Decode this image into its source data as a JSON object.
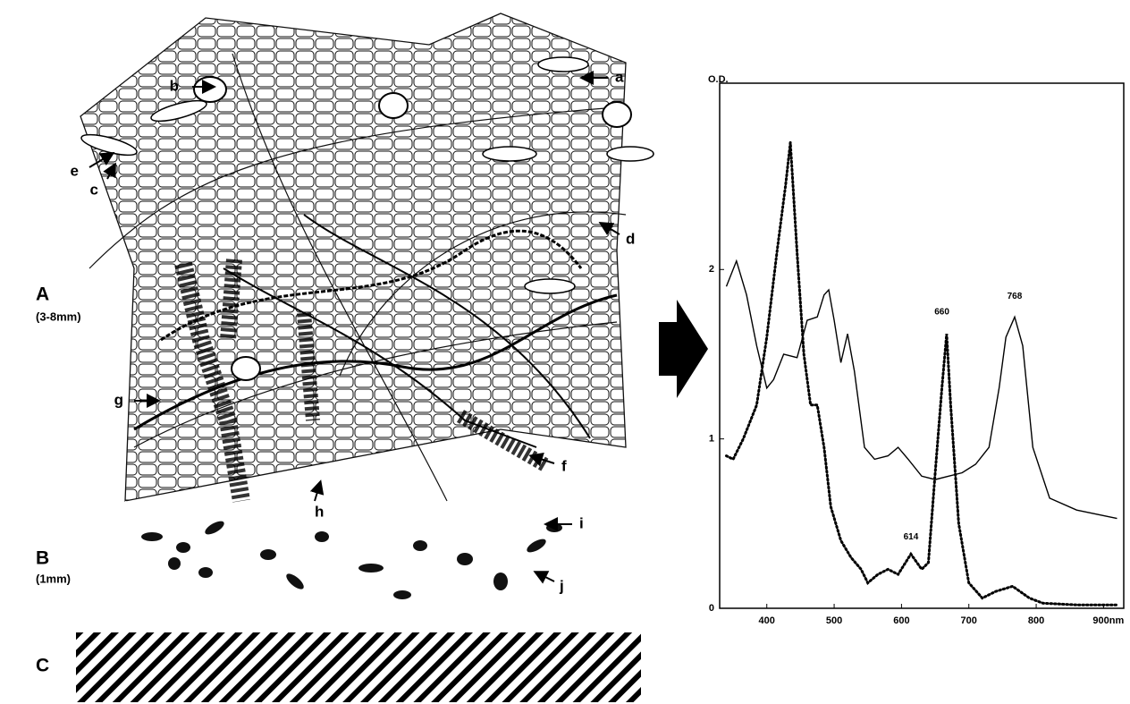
{
  "illustration": {
    "layers": [
      {
        "label": "A",
        "depth": "(3-8mm)"
      },
      {
        "label": "B",
        "depth": "(1mm)"
      },
      {
        "label": "C"
      }
    ],
    "organisms": [
      "a",
      "b",
      "c",
      "d",
      "e",
      "f",
      "g",
      "h",
      "i",
      "j"
    ]
  },
  "chart_data": {
    "type": "line",
    "y_label": "O.D.",
    "xlim": [
      330,
      930
    ],
    "ylim": [
      0,
      3.1
    ],
    "xticks": [
      400,
      500,
      600,
      700,
      800,
      {
        "value": 900,
        "label": "900nm"
      }
    ],
    "yticks": [
      0,
      1,
      2
    ],
    "series": [
      {
        "color": "#000000",
        "line_style": "solid",
        "x": [
          340,
          355,
          370,
          385,
          400,
          410,
          425,
          445,
          460,
          475,
          485,
          492,
          500,
          510,
          520,
          530,
          545,
          560,
          580,
          595,
          610,
          630,
          650,
          670,
          690,
          710,
          730,
          745,
          755,
          768,
          780,
          795,
          820,
          860,
          920
        ],
        "values": [
          1.9,
          2.05,
          1.85,
          1.55,
          1.3,
          1.35,
          1.5,
          1.48,
          1.7,
          1.72,
          1.85,
          1.88,
          1.7,
          1.45,
          1.62,
          1.4,
          0.95,
          0.88,
          0.9,
          0.95,
          0.88,
          0.78,
          0.76,
          0.78,
          0.8,
          0.85,
          0.95,
          1.3,
          1.6,
          1.72,
          1.55,
          0.95,
          0.65,
          0.58,
          0.53
        ]
      },
      {
        "color": "#000000",
        "line_style": "dotted",
        "x": [
          340,
          350,
          365,
          385,
          400,
          415,
          428,
          435,
          445,
          455,
          465,
          475,
          485,
          495,
          510,
          525,
          540,
          550,
          565,
          580,
          595,
          614,
          630,
          640,
          650,
          660,
          667,
          673,
          685,
          700,
          720,
          740,
          765,
          790,
          810,
          860,
          920
        ],
        "values": [
          0.9,
          0.88,
          1.0,
          1.2,
          1.6,
          2.1,
          2.5,
          2.75,
          2.1,
          1.5,
          1.2,
          1.2,
          0.95,
          0.6,
          0.4,
          0.3,
          0.23,
          0.15,
          0.2,
          0.23,
          0.2,
          0.32,
          0.23,
          0.27,
          0.8,
          1.3,
          1.62,
          1.2,
          0.5,
          0.15,
          0.06,
          0.1,
          0.13,
          0.06,
          0.03,
          0.02,
          0.02
        ]
      }
    ],
    "annotations": [
      {
        "text": "614",
        "x": 614,
        "y": 0.42
      },
      {
        "text": "660",
        "x": 660,
        "y": 1.75
      },
      {
        "text": "768",
        "x": 768,
        "y": 1.84
      }
    ]
  }
}
